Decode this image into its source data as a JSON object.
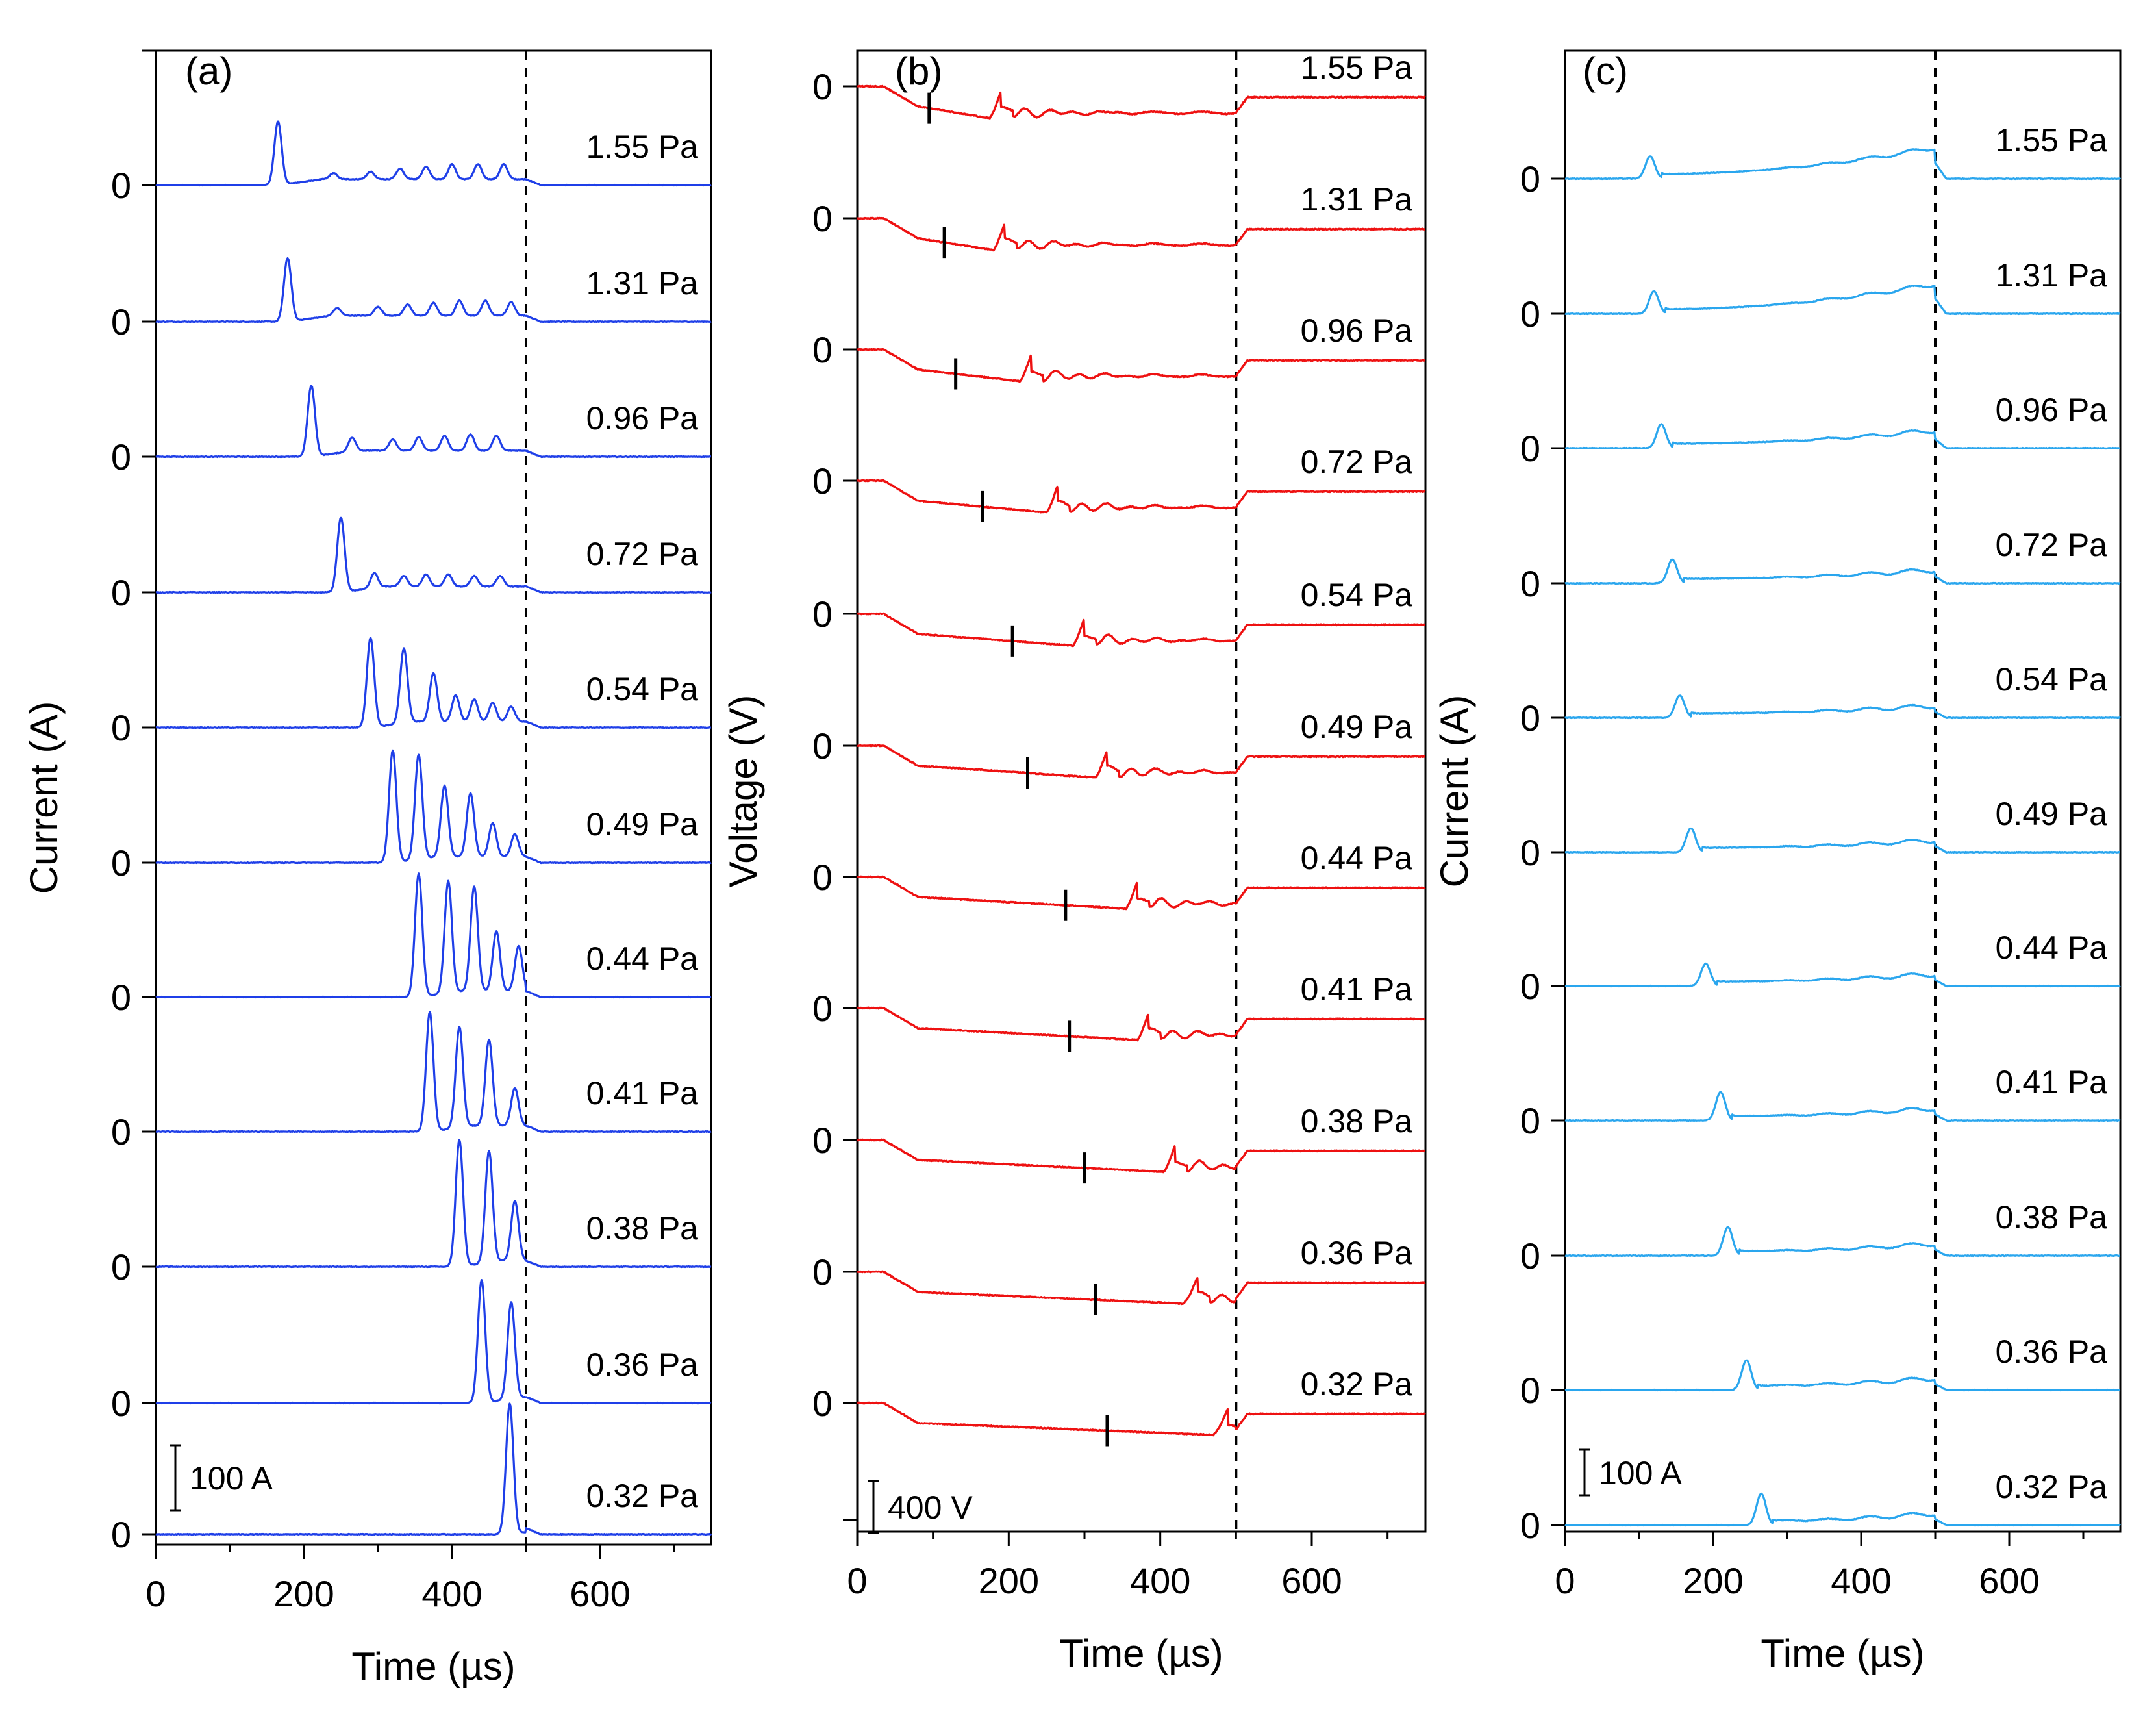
{
  "chart_data": [
    {
      "type": "line",
      "panel": "(a)",
      "xlabel": "Time (µs)",
      "ylabel": "Current (A)",
      "xlim": [
        0,
        750
      ],
      "xticks": [
        "0",
        "200",
        "400",
        "600"
      ],
      "zero_label": "0",
      "dashed_line_at": 500,
      "scale_bar": "100 A",
      "color": "#1f3fe8",
      "series": [
        {
          "name": "1.55 Pa",
          "peaks": [
            [
              165,
              85
            ],
            [
              240,
              8
            ],
            [
              290,
              10
            ],
            [
              330,
              14
            ],
            [
              365,
              17
            ],
            [
              400,
              20
            ],
            [
              435,
              20
            ],
            [
              470,
              20
            ]
          ]
        },
        {
          "name": "1.31 Pa",
          "peaks": [
            [
              178,
              85
            ],
            [
              245,
              10
            ],
            [
              300,
              12
            ],
            [
              340,
              15
            ],
            [
              375,
              17
            ],
            [
              410,
              20
            ],
            [
              445,
              20
            ],
            [
              480,
              18
            ]
          ]
        },
        {
          "name": "0.96 Pa",
          "peaks": [
            [
              210,
              95
            ],
            [
              265,
              18
            ],
            [
              320,
              15
            ],
            [
              355,
              18
            ],
            [
              390,
              20
            ],
            [
              425,
              22
            ],
            [
              460,
              20
            ]
          ]
        },
        {
          "name": "0.72 Pa",
          "peaks": [
            [
              250,
              100
            ],
            [
              295,
              20
            ],
            [
              335,
              14
            ],
            [
              365,
              16
            ],
            [
              395,
              16
            ],
            [
              430,
              14
            ],
            [
              465,
              14
            ]
          ]
        },
        {
          "name": "0.54 Pa",
          "peaks": [
            [
              290,
              120
            ],
            [
              335,
              100
            ],
            [
              375,
              65
            ],
            [
              405,
              35
            ],
            [
              430,
              30
            ],
            [
              455,
              25
            ],
            [
              480,
              20
            ]
          ]
        },
        {
          "name": "0.49 Pa",
          "peaks": [
            [
              320,
              150
            ],
            [
              355,
              140
            ],
            [
              390,
              95
            ],
            [
              425,
              85
            ],
            [
              455,
              45
            ],
            [
              485,
              30
            ]
          ]
        },
        {
          "name": "0.44 Pa",
          "peaks": [
            [
              355,
              165
            ],
            [
              395,
              150
            ],
            [
              430,
              140
            ],
            [
              460,
              80
            ],
            [
              490,
              60
            ]
          ]
        },
        {
          "name": "0.41 Pa",
          "peaks": [
            [
              370,
              160
            ],
            [
              410,
              135
            ],
            [
              450,
              115
            ],
            [
              485,
              50
            ]
          ]
        },
        {
          "name": "0.38 Pa",
          "peaks": [
            [
              410,
              170
            ],
            [
              450,
              150
            ],
            [
              485,
              80
            ]
          ]
        },
        {
          "name": "0.36 Pa",
          "peaks": [
            [
              440,
              165
            ],
            [
              480,
              130
            ]
          ]
        },
        {
          "name": "0.32 Pa",
          "peaks": [
            [
              478,
              175
            ]
          ]
        }
      ]
    },
    {
      "type": "line",
      "panel": "(b)",
      "xlabel": "Time (µs)",
      "ylabel": "Voltage (V)",
      "xlim": [
        0,
        750
      ],
      "xticks": [
        "0",
        "200",
        "400",
        "600"
      ],
      "zero_label": "0",
      "dashed_line_at": 500,
      "scale_bar": "400 V",
      "color": "#ee1111",
      "series": [
        {
          "name": "1.55 Pa",
          "drop_end_us": 175,
          "rise_peak_us": 190,
          "mark_us": 95
        },
        {
          "name": "1.31 Pa",
          "drop_end_us": 180,
          "rise_peak_us": 195,
          "mark_us": 115
        },
        {
          "name": "0.96 Pa",
          "drop_end_us": 215,
          "rise_peak_us": 230,
          "mark_us": 130
        },
        {
          "name": "0.72 Pa",
          "drop_end_us": 250,
          "rise_peak_us": 265,
          "mark_us": 165
        },
        {
          "name": "0.54 Pa",
          "drop_end_us": 285,
          "rise_peak_us": 300,
          "mark_us": 205
        },
        {
          "name": "0.49 Pa",
          "drop_end_us": 315,
          "rise_peak_us": 330,
          "mark_us": 225
        },
        {
          "name": "0.44 Pa",
          "drop_end_us": 355,
          "rise_peak_us": 370,
          "mark_us": 275
        },
        {
          "name": "0.41 Pa",
          "drop_end_us": 370,
          "rise_peak_us": 385,
          "mark_us": 280
        },
        {
          "name": "0.38 Pa",
          "drop_end_us": 405,
          "rise_peak_us": 420,
          "mark_us": 300
        },
        {
          "name": "0.36 Pa",
          "drop_end_us": 430,
          "rise_peak_us": 450,
          "mark_us": 315
        },
        {
          "name": "0.32 Pa",
          "drop_end_us": 470,
          "rise_peak_us": 490,
          "mark_us": 330
        }
      ]
    },
    {
      "type": "line",
      "panel": "(c)",
      "xlabel": "Time (µs)",
      "ylabel": "Current (A)",
      "xlim": [
        0,
        750
      ],
      "xticks": [
        "0",
        "200",
        "400",
        "600"
      ],
      "zero_label": "0",
      "dashed_line_at": 500,
      "scale_bar": "100 A",
      "color": "#2aa6ee",
      "series": [
        {
          "name": "1.55 Pa",
          "first_peak": [
            115,
            30
          ],
          "ramp_end": 42
        },
        {
          "name": "1.31 Pa",
          "first_peak": [
            120,
            30
          ],
          "ramp_end": 40
        },
        {
          "name": "0.96 Pa",
          "first_peak": [
            130,
            32
          ],
          "ramp_end": 24
        },
        {
          "name": "0.72 Pa",
          "first_peak": [
            145,
            32
          ],
          "ramp_end": 18
        },
        {
          "name": "0.54 Pa",
          "first_peak": [
            155,
            30
          ],
          "ramp_end": 16
        },
        {
          "name": "0.49 Pa",
          "first_peak": [
            170,
            32
          ],
          "ramp_end": 16
        },
        {
          "name": "0.44 Pa",
          "first_peak": [
            190,
            30
          ],
          "ramp_end": 16
        },
        {
          "name": "0.41 Pa",
          "first_peak": [
            210,
            38
          ],
          "ramp_end": 16
        },
        {
          "name": "0.38 Pa",
          "first_peak": [
            220,
            38
          ],
          "ramp_end": 16
        },
        {
          "name": "0.36 Pa",
          "first_peak": [
            245,
            40
          ],
          "ramp_end": 16
        },
        {
          "name": "0.32 Pa",
          "first_peak": [
            265,
            42
          ],
          "ramp_end": 16
        }
      ]
    }
  ]
}
